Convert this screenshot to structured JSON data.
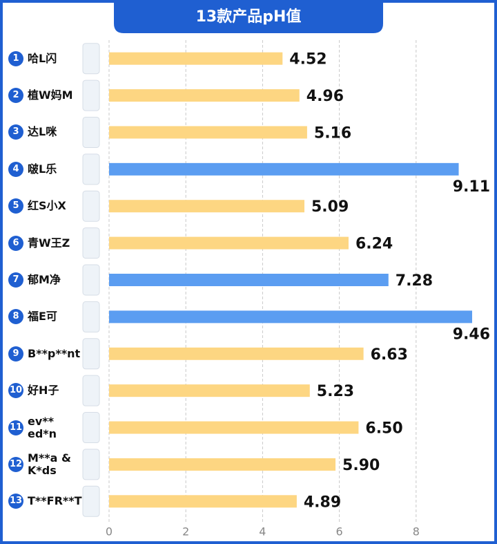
{
  "chart_data": {
    "type": "barh",
    "title": "13款产品pH值",
    "ranks": [
      1,
      2,
      3,
      4,
      5,
      6,
      7,
      8,
      9,
      10,
      11,
      12,
      13
    ],
    "categories": [
      "哈L闪",
      "植W妈M",
      "达L咪",
      "啵L乐",
      "红S小X",
      "青W王Z",
      "郁M净",
      "福E可",
      "B**p**nt",
      "好H子",
      "ev** ed*n",
      "M**a & K*ds",
      "T**FR**T"
    ],
    "values": [
      4.52,
      4.96,
      5.16,
      9.11,
      5.09,
      6.24,
      7.28,
      9.46,
      6.63,
      5.23,
      6.5,
      5.9,
      4.89
    ],
    "value_labels": [
      "4.52",
      "4.96",
      "5.16",
      "9.11",
      "5.09",
      "6.24",
      "7.28",
      "9.46",
      "6.63",
      "5.23",
      "6.50",
      "5.90",
      "4.89"
    ],
    "colors": [
      "#fdd682",
      "#fdd682",
      "#fdd682",
      "#5b9df1",
      "#fdd682",
      "#fdd682",
      "#5b9df1",
      "#5b9df1",
      "#fdd682",
      "#fdd682",
      "#fdd682",
      "#fdd682",
      "#fdd682"
    ],
    "xlim": [
      0,
      10
    ],
    "xticks": [
      0,
      2,
      4,
      6,
      8
    ],
    "grid": true
  }
}
